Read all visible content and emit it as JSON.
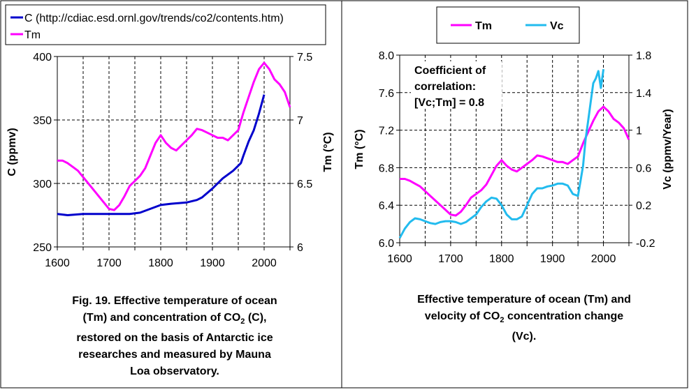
{
  "colors": {
    "c_series": "#0000CC",
    "tm_series": "#FF00FF",
    "vc_series": "#22BBEE",
    "grid": "#000000"
  },
  "chart_data": [
    {
      "type": "line",
      "legend": [
        "C (http://cdiac.esd.ornl.gov/trends/co2/contents.htm)",
        "Tm"
      ],
      "legend_position": "top",
      "ylabel": "C (ppmv)",
      "y2label": "Tm (°C)",
      "xlim": [
        1600,
        2050
      ],
      "ylim": [
        250,
        400
      ],
      "y2lim": [
        6,
        7.5
      ],
      "xticks": [
        "1600",
        "1700",
        "1800",
        "1900",
        "2000"
      ],
      "yticks": [
        "250",
        "300",
        "350",
        "400"
      ],
      "y2ticks": [
        "6",
        "6.5",
        "7",
        "7.5"
      ],
      "grid": true,
      "series": [
        {
          "name": "C (http://cdiac.esd.ornl.gov/trends/co2/contents.htm)",
          "axis": "y",
          "x": [
            1600,
            1620,
            1650,
            1700,
            1740,
            1760,
            1780,
            1800,
            1820,
            1850,
            1870,
            1880,
            1900,
            1920,
            1940,
            1955,
            1960,
            1970,
            1980,
            1990,
            2000
          ],
          "y": [
            276,
            275,
            276,
            276,
            276,
            277,
            280,
            283,
            284,
            285,
            287,
            289,
            296,
            304,
            310,
            316,
            322,
            333,
            342,
            355,
            370
          ]
        },
        {
          "name": "Tm",
          "axis": "y2",
          "x": [
            1600,
            1610,
            1620,
            1630,
            1640,
            1650,
            1660,
            1670,
            1680,
            1690,
            1700,
            1710,
            1720,
            1730,
            1740,
            1750,
            1760,
            1770,
            1780,
            1790,
            1800,
            1810,
            1820,
            1830,
            1840,
            1850,
            1860,
            1870,
            1880,
            1890,
            1900,
            1910,
            1920,
            1930,
            1940,
            1950,
            1960,
            1970,
            1980,
            1990,
            2000,
            2010,
            2020,
            2030,
            2040,
            2050
          ],
          "y": [
            6.68,
            6.68,
            6.66,
            6.63,
            6.6,
            6.55,
            6.5,
            6.45,
            6.4,
            6.35,
            6.3,
            6.29,
            6.33,
            6.4,
            6.48,
            6.52,
            6.56,
            6.62,
            6.72,
            6.82,
            6.88,
            6.82,
            6.78,
            6.76,
            6.8,
            6.84,
            6.88,
            6.93,
            6.92,
            6.9,
            6.88,
            6.86,
            6.86,
            6.84,
            6.88,
            6.92,
            7.06,
            7.18,
            7.3,
            7.4,
            7.45,
            7.4,
            7.32,
            7.28,
            7.22,
            7.1
          ]
        }
      ]
    },
    {
      "type": "line",
      "legend": [
        "Tm",
        "Vc"
      ],
      "legend_position": "top",
      "ylabel": "Tm (°C)",
      "y2label": "Vc (ppmv/Year)",
      "xlim": [
        1600,
        2050
      ],
      "ylim": [
        6.0,
        8.0
      ],
      "y2lim": [
        -0.2,
        1.8
      ],
      "xticks": [
        "1600",
        "1700",
        "1800",
        "1900",
        "2000"
      ],
      "yticks": [
        "6.0",
        "6.4",
        "6.8",
        "7.2",
        "7.6",
        "8.0"
      ],
      "y2ticks": [
        "-0.2",
        "0.2",
        "0.6",
        "1",
        "1.4",
        "1.8"
      ],
      "grid": true,
      "annotation": [
        "Coefficient of",
        "correlation:",
        "[Vc;Tm] = 0.8"
      ],
      "series": [
        {
          "name": "Tm",
          "axis": "y",
          "x": [
            1600,
            1610,
            1620,
            1630,
            1640,
            1650,
            1660,
            1670,
            1680,
            1690,
            1700,
            1710,
            1720,
            1730,
            1740,
            1750,
            1760,
            1770,
            1780,
            1790,
            1800,
            1810,
            1820,
            1830,
            1840,
            1850,
            1860,
            1870,
            1880,
            1890,
            1900,
            1910,
            1920,
            1930,
            1940,
            1950,
            1960,
            1970,
            1980,
            1990,
            2000,
            2010,
            2020,
            2030,
            2040,
            2050
          ],
          "y": [
            6.68,
            6.68,
            6.66,
            6.63,
            6.6,
            6.55,
            6.5,
            6.45,
            6.4,
            6.35,
            6.3,
            6.29,
            6.33,
            6.4,
            6.48,
            6.52,
            6.56,
            6.62,
            6.72,
            6.82,
            6.88,
            6.82,
            6.78,
            6.76,
            6.8,
            6.84,
            6.88,
            6.93,
            6.92,
            6.9,
            6.88,
            6.86,
            6.86,
            6.84,
            6.88,
            6.92,
            7.06,
            7.18,
            7.3,
            7.4,
            7.45,
            7.4,
            7.32,
            7.28,
            7.22,
            7.1
          ]
        },
        {
          "name": "Vc",
          "axis": "y2",
          "x": [
            1600,
            1610,
            1620,
            1630,
            1640,
            1650,
            1660,
            1670,
            1680,
            1690,
            1700,
            1710,
            1720,
            1730,
            1740,
            1750,
            1760,
            1770,
            1780,
            1790,
            1800,
            1810,
            1820,
            1830,
            1840,
            1850,
            1860,
            1870,
            1880,
            1890,
            1900,
            1910,
            1920,
            1930,
            1940,
            1950,
            1955,
            1960,
            1965,
            1970,
            1975,
            1980,
            1985,
            1990,
            1995,
            2000
          ],
          "y": [
            -0.15,
            -0.05,
            0.02,
            0.06,
            0.05,
            0.03,
            0.01,
            0.0,
            0.02,
            0.03,
            0.03,
            0.02,
            0.0,
            0.02,
            0.06,
            0.1,
            0.18,
            0.24,
            0.28,
            0.27,
            0.2,
            0.1,
            0.05,
            0.05,
            0.08,
            0.2,
            0.32,
            0.38,
            0.38,
            0.4,
            0.41,
            0.43,
            0.43,
            0.41,
            0.32,
            0.3,
            0.46,
            0.62,
            0.9,
            1.1,
            1.3,
            1.5,
            1.55,
            1.63,
            1.45,
            1.65
          ]
        }
      ]
    }
  ],
  "captions": {
    "left": [
      "Fig. 19. Effective temperature of ocean",
      "(Tm) and concentration of CO",
      "2",
      " (C),",
      "restored on the basis of Antarctic ice",
      "researches and measured by Mauna",
      "Loa observatory."
    ],
    "right": [
      "Effective temperature of ocean (Tm) and",
      "velocity of CO",
      "2",
      " concentration change",
      "(Vc)."
    ]
  }
}
